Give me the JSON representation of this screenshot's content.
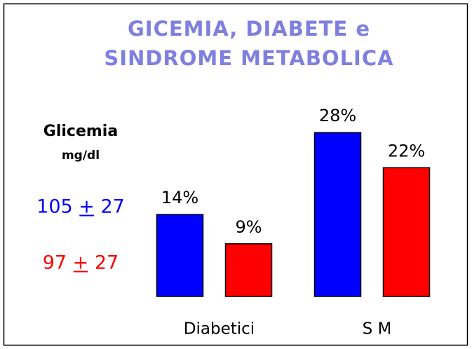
{
  "chart_data": {
    "type": "bar",
    "title": [
      "GICEMIA, DIABETE e",
      "SINDROME METABOLICA"
    ],
    "legend_title": "Glicemia",
    "legend_unit": "mg/dl",
    "categories": [
      "Diabetici",
      "S M"
    ],
    "series": [
      {
        "name": "105 + 27",
        "color": "#0000ff",
        "values": [
          14,
          28
        ],
        "value_labels": [
          "14%",
          "28%"
        ]
      },
      {
        "name": "97 + 27",
        "color": "#ff0000",
        "values": [
          9,
          22
        ],
        "value_labels": [
          "9%",
          "22%"
        ]
      }
    ]
  }
}
